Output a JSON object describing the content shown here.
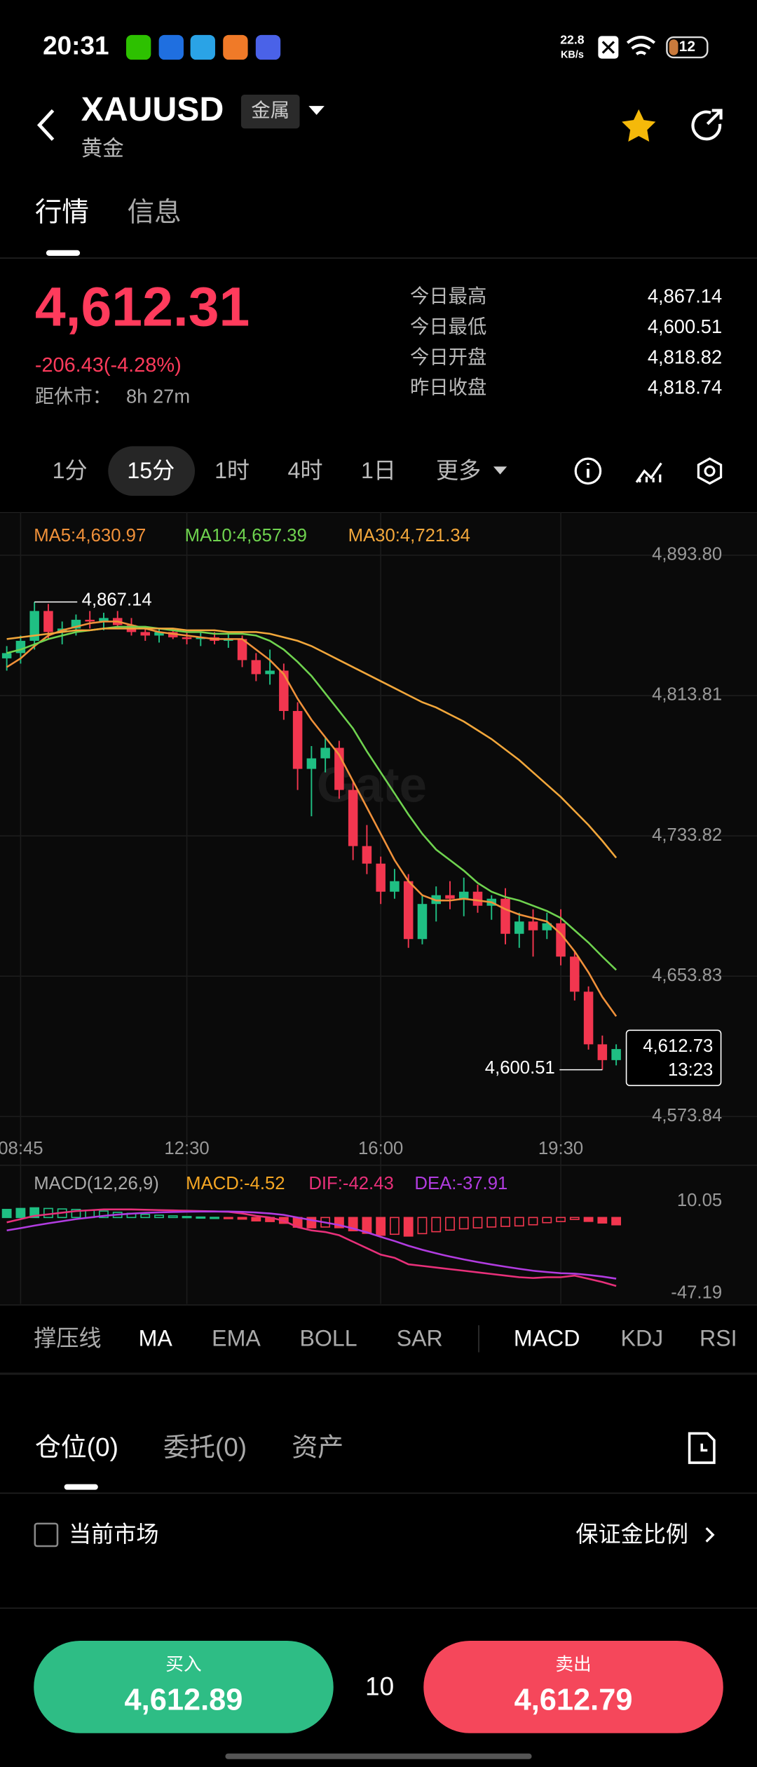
{
  "status_bar": {
    "time": "20:31",
    "speed": "22.8",
    "speed_unit": "KB/s",
    "battery": "12"
  },
  "header": {
    "symbol": "XAUUSD",
    "tag": "金属",
    "name": "黄金"
  },
  "tabs": [
    "行情",
    "信息"
  ],
  "quote": {
    "price": "4,612.31",
    "change": "-206.43(-4.28%)",
    "close_label": "距休市：",
    "close_time": "8h 27m",
    "stats": [
      {
        "label": "今日最高",
        "value": "4,867.14"
      },
      {
        "label": "今日最低",
        "value": "4,600.51"
      },
      {
        "label": "今日开盘",
        "value": "4,818.82"
      },
      {
        "label": "昨日收盘",
        "value": "4,818.74"
      }
    ]
  },
  "intervals": [
    "1分",
    "15分",
    "1时",
    "4时",
    "1日",
    "更多"
  ],
  "chart_data": [
    {
      "type": "candlestick",
      "watermark": "Gate",
      "up_color": "#1fbf83",
      "down_color": "#f2364f",
      "categories": [
        null,
        "08:45",
        null,
        null,
        null,
        null,
        null,
        null,
        null,
        null,
        null,
        null,
        null,
        "12:30",
        null,
        null,
        null,
        null,
        null,
        null,
        null,
        null,
        null,
        null,
        null,
        null,
        null,
        "16:00",
        null,
        null,
        null,
        null,
        null,
        null,
        null,
        null,
        null,
        null,
        null,
        null,
        "19:30",
        null,
        null,
        null,
        null
      ],
      "open": [
        4835,
        4838,
        4845,
        4862,
        4850,
        4852,
        4857,
        4856,
        4858,
        4854,
        4850,
        4848,
        4850,
        4847,
        4846,
        4847,
        4845,
        4846,
        4834,
        4826,
        4828,
        4805,
        4772,
        4778,
        4784,
        4760,
        4728,
        4718,
        4702,
        4708,
        4675,
        4695,
        4700,
        4698,
        4702,
        4694,
        4698,
        4678,
        4685,
        4680,
        4684,
        4665,
        4645,
        4615,
        4606
      ],
      "high": [
        4842,
        4848,
        4867.14,
        4866,
        4856,
        4860,
        4862,
        4861,
        4862,
        4858,
        4853,
        4852,
        4852,
        4850,
        4850,
        4850,
        4849,
        4848,
        4838,
        4840,
        4832,
        4810,
        4785,
        4790,
        4788,
        4765,
        4740,
        4722,
        4715,
        4712,
        4700,
        4705,
        4708,
        4710,
        4706,
        4700,
        4704,
        4690,
        4692,
        4690,
        4692,
        4668,
        4648,
        4620,
        4615
      ],
      "low": [
        4828,
        4832,
        4840,
        4846,
        4843,
        4848,
        4852,
        4851,
        4853,
        4848,
        4845,
        4844,
        4846,
        4843,
        4842,
        4843,
        4841,
        4830,
        4822,
        4820,
        4800,
        4760,
        4745,
        4770,
        4755,
        4720,
        4712,
        4695,
        4698,
        4670,
        4672,
        4685,
        4692,
        4688,
        4690,
        4686,
        4672,
        4670,
        4665,
        4675,
        4660,
        4640,
        4612,
        4600.51,
        4603
      ],
      "close": [
        4838,
        4845,
        4862,
        4850,
        4852,
        4857,
        4856,
        4858,
        4854,
        4850,
        4848,
        4850,
        4847,
        4846,
        4847,
        4845,
        4846,
        4834,
        4826,
        4828,
        4805,
        4772,
        4778,
        4784,
        4760,
        4728,
        4718,
        4702,
        4708,
        4675,
        4695,
        4700,
        4698,
        4702,
        4694,
        4698,
        4678,
        4685,
        4680,
        4684,
        4665,
        4645,
        4615,
        4606,
        4612.31
      ],
      "series": [
        {
          "name": "MA5:4,630.97",
          "color": "#f0913a",
          "values": [
            4830,
            4835,
            4842,
            4848,
            4851,
            4853,
            4855,
            4856,
            4856,
            4854,
            4852,
            4850,
            4849,
            4848,
            4847,
            4846,
            4846,
            4846,
            4840,
            4834,
            4826,
            4812,
            4800,
            4790,
            4780,
            4765,
            4750,
            4735,
            4720,
            4708,
            4700,
            4697,
            4697,
            4698,
            4697,
            4696,
            4692,
            4689,
            4687,
            4685,
            4678,
            4668,
            4656,
            4642,
            4630.97
          ]
        },
        {
          "name": "MA10:4,657.39",
          "color": "#6fd34f",
          "values": [
            4838,
            4840,
            4843,
            4846,
            4848,
            4850,
            4851,
            4852,
            4853,
            4853,
            4853,
            4852,
            4851,
            4850,
            4850,
            4849,
            4849,
            4849,
            4848,
            4845,
            4840,
            4833,
            4825,
            4815,
            4805,
            4795,
            4782,
            4770,
            4758,
            4746,
            4735,
            4726,
            4720,
            4714,
            4707,
            4702,
            4699,
            4697,
            4694,
            4691,
            4687,
            4680,
            4673,
            4665,
            4657.39
          ]
        },
        {
          "name": "MA30:4,721.34",
          "color": "#f2a73b",
          "values": [
            4846,
            4847,
            4848,
            4849,
            4850,
            4851,
            4851,
            4852,
            4852,
            4852,
            4852,
            4852,
            4852,
            4851,
            4851,
            4851,
            4850,
            4850,
            4850,
            4849,
            4847,
            4845,
            4842,
            4838,
            4834,
            4830,
            4826,
            4822,
            4818,
            4814,
            4810,
            4807,
            4803,
            4799,
            4794,
            4789,
            4783,
            4777,
            4770,
            4763,
            4756,
            4748,
            4740,
            4731,
            4721.34
          ]
        }
      ],
      "annotations": [
        {
          "value": 4867.14,
          "label": "4,867.14"
        },
        {
          "value": 4600.51,
          "label": "4,600.51"
        }
      ],
      "last_price": {
        "value": 4612.73,
        "label": "4,612.73"
      },
      "countdown": "13:23",
      "ylim": [
        4566,
        4918
      ],
      "yticks": [
        {
          "value": 4573.84,
          "label": "4,573.84"
        },
        {
          "value": 4653.83,
          "label": "4,653.83"
        },
        {
          "value": 4733.82,
          "label": "4,733.82"
        },
        {
          "value": 4813.81,
          "label": "4,813.81"
        },
        {
          "value": 4893.8,
          "label": "4,893.80"
        }
      ],
      "grid": true
    },
    {
      "type": "macd",
      "title": "MACD(12,26,9)",
      "up_color": "#1fbf83",
      "down_color": "#f2364f",
      "series": [
        {
          "name": "MACD:-4.52",
          "color": "#f5a623",
          "values": [
            5,
            5.6,
            6,
            5.6,
            5.3,
            5,
            4.5,
            4,
            3.2,
            2.6,
            1.9,
            1.4,
            1,
            0.6,
            0.3,
            0.1,
            -0.2,
            -1,
            -2.1,
            -2.5,
            -3.6,
            -6,
            -6.4,
            -5.9,
            -6.3,
            -8.2,
            -9.8,
            -11,
            -10.4,
            -11.5,
            -10,
            -8.8,
            -7.8,
            -7,
            -6.4,
            -5.9,
            -5.5,
            -5.2,
            -4.5,
            -3.2,
            -2.5,
            -1.2,
            -2.4,
            -3.4,
            -4.52
          ]
        },
        {
          "name": "DIF:-42.43",
          "color": "#e8307a",
          "values": [
            -3,
            -1,
            1,
            2,
            3,
            4,
            4.5,
            5,
            5,
            5,
            4.8,
            4.6,
            4.4,
            4.2,
            4,
            3.8,
            3.5,
            2.5,
            1,
            0,
            -2,
            -6,
            -8,
            -9,
            -11,
            -15,
            -19,
            -23,
            -25,
            -29,
            -30,
            -31,
            -32,
            -33,
            -34,
            -35,
            -36,
            -37,
            -37.5,
            -37,
            -37,
            -36,
            -38,
            -40,
            -42.43
          ]
        },
        {
          "name": "DEA:-37.91",
          "color": "#b13ce0",
          "values": [
            -8,
            -6.6,
            -5,
            -3.6,
            -2.3,
            -1,
            0,
            1,
            1.8,
            2.4,
            2.9,
            3.2,
            3.4,
            3.6,
            3.7,
            3.7,
            3.7,
            3.5,
            3.1,
            2.5,
            1.6,
            0,
            -1.6,
            -3.1,
            -4.7,
            -6.8,
            -9.2,
            -12,
            -14.6,
            -17.5,
            -20,
            -22.2,
            -24.2,
            -26,
            -27.6,
            -29.1,
            -30.5,
            -31.8,
            -33,
            -33.8,
            -34.5,
            -34.8,
            -35.6,
            -36.6,
            -37.91
          ]
        }
      ],
      "ylim": [
        -53.5,
        28.2
      ],
      "yticks": [
        -47.19,
        10.05
      ]
    }
  ],
  "indicators": [
    "撑压线",
    "MA",
    "EMA",
    "BOLL",
    "SAR",
    "MACD",
    "KDJ",
    "RSI"
  ],
  "position_tabs": [
    "仓位(0)",
    "委托(0)",
    "资产"
  ],
  "market_filter": "当前市场",
  "margin_link": "保证金比例",
  "buy": {
    "label": "买入",
    "price": "4,612.89"
  },
  "quantity": "10",
  "sell": {
    "label": "卖出",
    "price": "4,612.79"
  }
}
